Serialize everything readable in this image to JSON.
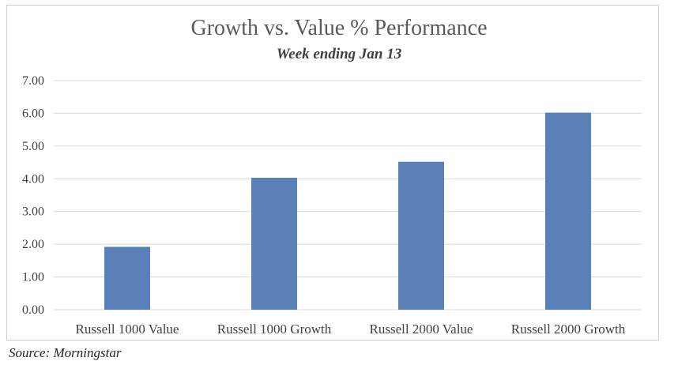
{
  "chart_data": {
    "type": "bar",
    "title": "Growth vs. Value % Performance",
    "subtitle": "Week ending Jan 13",
    "categories": [
      "Russell 1000 Value",
      "Russell 1000 Growth",
      "Russell 2000 Value",
      "Russell 2000 Growth"
    ],
    "values": [
      1.92,
      4.03,
      4.52,
      6.02
    ],
    "ylim": [
      0,
      7
    ],
    "yticks": [
      "0.00",
      "1.00",
      "2.00",
      "3.00",
      "4.00",
      "5.00",
      "6.00",
      "7.00"
    ],
    "xlabel": "",
    "ylabel": "",
    "grid": true,
    "bar_color": "#5a80b8",
    "grid_color": "#d9d9d9"
  },
  "source": "Source: Morningstar"
}
